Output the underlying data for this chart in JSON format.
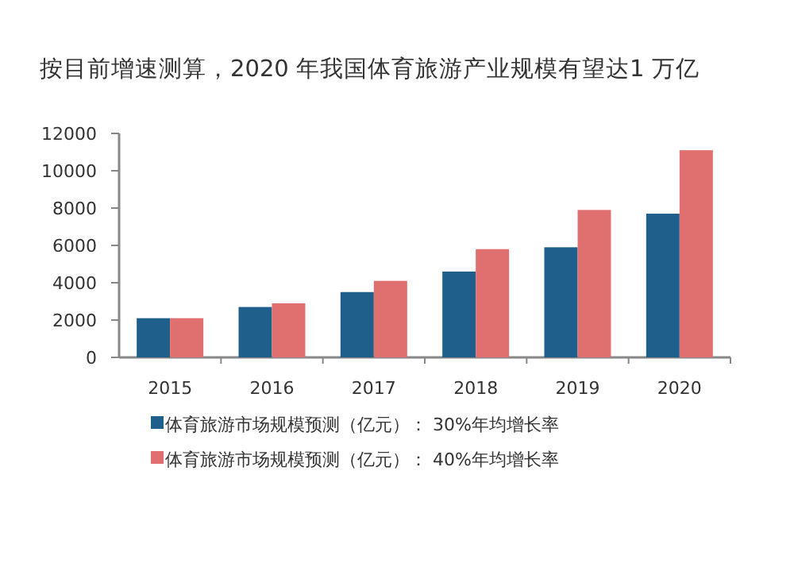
{
  "chart_data": {
    "type": "bar",
    "title": "按目前增速测算，2020 年我国体育旅游产业规模有望达1 万亿",
    "categories": [
      "2015",
      "2016",
      "2017",
      "2018",
      "2019",
      "2020"
    ],
    "series": [
      {
        "name": "体育旅游市场规模预测（亿元）： 30%年均增长率",
        "color": "#1f5f8b",
        "values": [
          2100,
          2700,
          3500,
          4600,
          5900,
          7700
        ]
      },
      {
        "name": "体育旅游市场规模预测（亿元）： 40%年均增长率",
        "color": "#e07070",
        "values": [
          2100,
          2900,
          4100,
          5800,
          7900,
          11100
        ]
      }
    ],
    "ylim": [
      0,
      12000
    ],
    "yticks": [
      0,
      2000,
      4000,
      6000,
      8000,
      10000,
      12000
    ],
    "grid": false,
    "legend": "bottom"
  }
}
